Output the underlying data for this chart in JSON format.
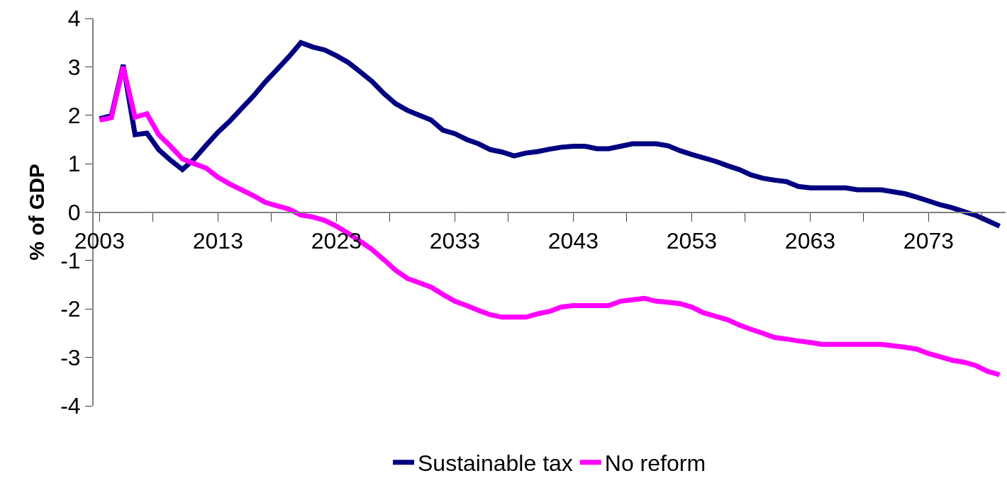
{
  "chart_data": {
    "type": "line",
    "ylabel": "% of GDP",
    "x": [
      2003,
      2004,
      2005,
      2006,
      2007,
      2008,
      2009,
      2010,
      2011,
      2012,
      2013,
      2014,
      2015,
      2016,
      2017,
      2018,
      2019,
      2020,
      2021,
      2022,
      2023,
      2024,
      2025,
      2026,
      2027,
      2028,
      2029,
      2030,
      2031,
      2032,
      2033,
      2034,
      2035,
      2036,
      2037,
      2038,
      2039,
      2040,
      2041,
      2042,
      2043,
      2044,
      2045,
      2046,
      2047,
      2048,
      2049,
      2050,
      2051,
      2052,
      2053,
      2054,
      2055,
      2056,
      2057,
      2058,
      2059,
      2060,
      2061,
      2062,
      2063,
      2064,
      2065,
      2066,
      2067,
      2068,
      2069,
      2070,
      2071,
      2072,
      2073,
      2074,
      2075,
      2076,
      2077,
      2078,
      2079
    ],
    "series": [
      {
        "name": "Sustainable tax",
        "color": "#000080",
        "values": [
          1.93,
          1.99,
          3.04,
          1.6,
          1.63,
          1.29,
          1.07,
          0.88,
          1.1,
          1.38,
          1.65,
          1.88,
          2.14,
          2.4,
          2.69,
          2.95,
          3.21,
          3.5,
          3.41,
          3.35,
          3.23,
          3.09,
          2.9,
          2.7,
          2.45,
          2.24,
          2.1,
          2.0,
          1.9,
          1.69,
          1.62,
          1.5,
          1.41,
          1.29,
          1.24,
          1.16,
          1.22,
          1.25,
          1.3,
          1.34,
          1.36,
          1.36,
          1.31,
          1.31,
          1.36,
          1.41,
          1.41,
          1.41,
          1.37,
          1.27,
          1.19,
          1.12,
          1.05,
          0.96,
          0.88,
          0.77,
          0.7,
          0.66,
          0.63,
          0.53,
          0.5,
          0.5,
          0.5,
          0.5,
          0.46,
          0.46,
          0.46,
          0.42,
          0.38,
          0.31,
          0.23,
          0.15,
          0.09,
          0.01,
          -0.07,
          -0.18,
          -0.29
        ]
      },
      {
        "name": "No reform",
        "color": "#ff00ff",
        "values": [
          1.9,
          1.95,
          3.0,
          1.96,
          2.03,
          1.6,
          1.36,
          1.1,
          1.0,
          0.91,
          0.72,
          0.58,
          0.46,
          0.34,
          0.2,
          0.13,
          0.06,
          -0.06,
          -0.1,
          -0.17,
          -0.29,
          -0.44,
          -0.6,
          -0.77,
          -0.98,
          -1.2,
          -1.37,
          -1.46,
          -1.55,
          -1.7,
          -1.84,
          -1.93,
          -2.03,
          -2.12,
          -2.17,
          -2.17,
          -2.17,
          -2.1,
          -2.05,
          -1.96,
          -1.93,
          -1.93,
          -1.93,
          -1.93,
          -1.84,
          -1.81,
          -1.78,
          -1.84,
          -1.86,
          -1.89,
          -1.96,
          -2.08,
          -2.15,
          -2.22,
          -2.33,
          -2.42,
          -2.5,
          -2.59,
          -2.62,
          -2.66,
          -2.69,
          -2.73,
          -2.73,
          -2.73,
          -2.73,
          -2.73,
          -2.73,
          -2.76,
          -2.79,
          -2.83,
          -2.92,
          -2.99,
          -3.06,
          -3.1,
          -3.17,
          -3.29,
          -3.36
        ]
      }
    ],
    "xlim": [
      2002.5,
      2079.5
    ],
    "xticks": [
      2003,
      {
        "value": 2007.5,
        "label": null
      },
      2013,
      {
        "value": 2017.5,
        "label": null
      },
      2023,
      {
        "value": 2027.5,
        "label": null
      },
      2033,
      {
        "value": 2037.5,
        "label": null
      },
      2043,
      {
        "value": 2047.5,
        "label": null
      },
      2053,
      {
        "value": 2057.5,
        "label": null
      },
      2063,
      {
        "value": 2067.5,
        "label": null
      },
      2073,
      {
        "value": 2077.5,
        "label": null
      }
    ],
    "ylim": [
      -4,
      4
    ],
    "yticks": [
      -4,
      -3,
      -2,
      -1,
      0,
      1,
      2,
      3,
      4
    ],
    "legend": "bottom",
    "marker": "none",
    "line_style": "solid"
  }
}
